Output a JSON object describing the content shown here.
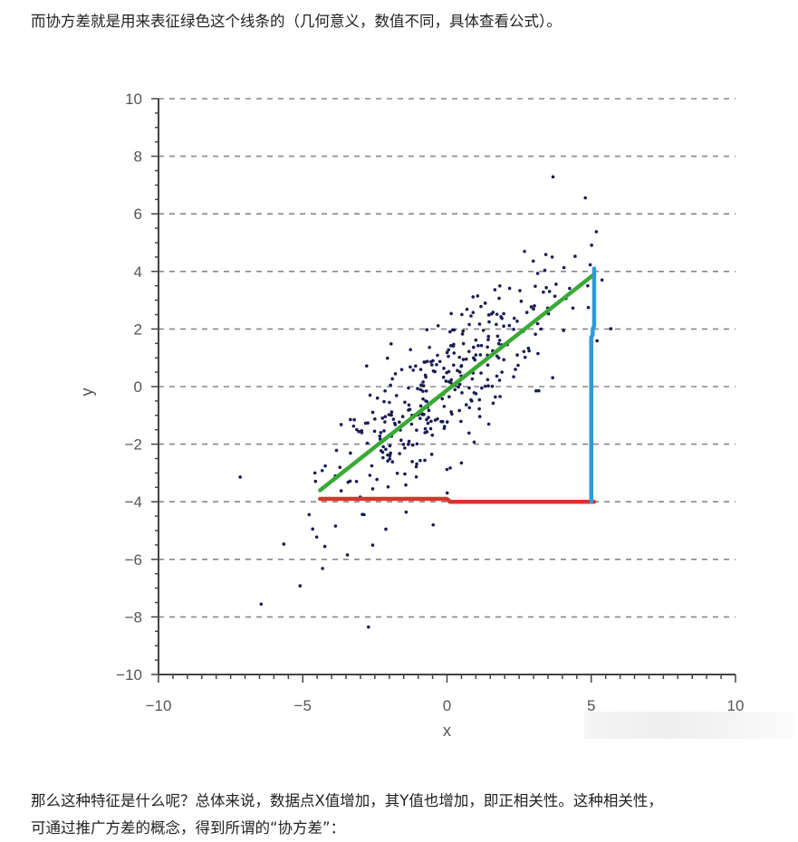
{
  "article": {
    "paragraph_before": "而协方差就是用来表征绿色这个线条的（几何意义，数值不同，具体查看公式）。",
    "paragraph_after_line1": "那么这种特征是什么呢？总体来说，数据点X值增加，其Y值也增加，即正相关性。这种相关性，",
    "paragraph_after_line2": "可通过推广方差的概念，得到所谓的“协方差”："
  },
  "chart_data": {
    "type": "scatter",
    "title": "",
    "xlabel": "x",
    "ylabel": "y",
    "xlim": [
      -10,
      10
    ],
    "ylim": [
      -10,
      10
    ],
    "x_ticks": [
      -10,
      -5,
      0,
      5,
      10
    ],
    "y_ticks": [
      -10,
      -8,
      -6,
      -4,
      -2,
      0,
      2,
      4,
      6,
      8,
      10
    ],
    "x_tick_labels": [
      "−10",
      "−5",
      "0",
      "5",
      "10"
    ],
    "y_tick_labels": [
      "−10",
      "−8",
      "−6",
      "−4",
      "−2",
      "0",
      "2",
      "4",
      "6",
      "8",
      "10"
    ],
    "grid": "horizontal-dashed",
    "point_color": "#1a1a55",
    "points_n": 360,
    "points_seed": 7,
    "points_slope": 0.82,
    "points_x_spread": 2.2,
    "points_y_noise": 1.3,
    "overlays": [
      {
        "name": "green-line",
        "color": "#39a935",
        "x": [
          -4.4,
          5.1
        ],
        "y": [
          -3.6,
          3.9
        ]
      },
      {
        "name": "red-line",
        "color": "#d9342b",
        "x": [
          -4.4,
          0,
          0.1,
          5.1
        ],
        "y": [
          -3.9,
          -3.9,
          -4.0,
          -4.0
        ]
      },
      {
        "name": "blue-line",
        "color": "#2f9ad8",
        "x": [
          5.0,
          5.0,
          5.05,
          5.05,
          5.1,
          5.1
        ],
        "y": [
          -4.0,
          1.7,
          1.8,
          2.0,
          2.1,
          4.1
        ]
      }
    ]
  }
}
